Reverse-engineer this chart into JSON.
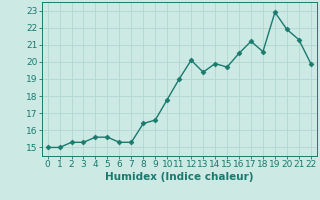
{
  "x": [
    0,
    1,
    2,
    3,
    4,
    5,
    6,
    7,
    8,
    9,
    10,
    11,
    12,
    13,
    14,
    15,
    16,
    17,
    18,
    19,
    20,
    21,
    22
  ],
  "y": [
    15.0,
    15.0,
    15.3,
    15.3,
    15.6,
    15.6,
    15.3,
    15.3,
    16.4,
    16.6,
    17.8,
    19.0,
    20.1,
    19.4,
    19.9,
    19.7,
    20.5,
    21.2,
    20.6,
    22.9,
    21.9,
    21.3,
    19.9
  ],
  "line_color": "#1a7a6e",
  "marker": "D",
  "marker_size": 2.5,
  "bg_color": "#cce9e4",
  "grid_color": "#b0d8d0",
  "xlabel": "Humidex (Indice chaleur)",
  "xlim": [
    -0.5,
    22.5
  ],
  "ylim": [
    14.5,
    23.5
  ],
  "yticks": [
    15,
    16,
    17,
    18,
    19,
    20,
    21,
    22,
    23
  ],
  "xticks": [
    0,
    1,
    2,
    3,
    4,
    5,
    6,
    7,
    8,
    9,
    10,
    11,
    12,
    13,
    14,
    15,
    16,
    17,
    18,
    19,
    20,
    21,
    22
  ],
  "tick_fontsize": 6.5,
  "xlabel_fontsize": 7.5,
  "line_width": 1.0
}
